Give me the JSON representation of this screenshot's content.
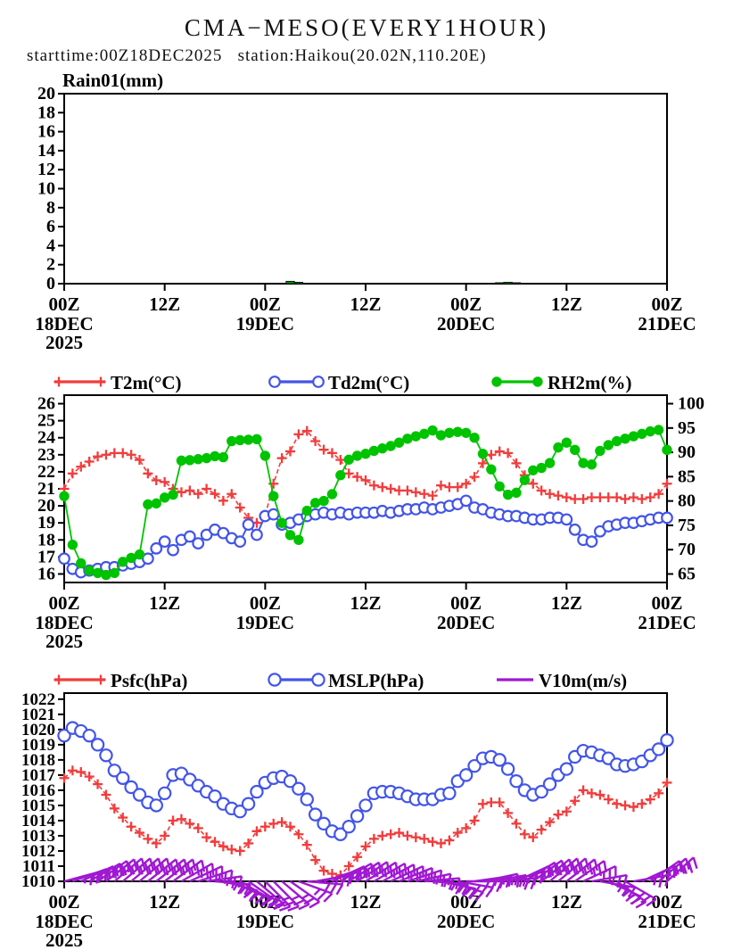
{
  "header": {
    "title": "CMA−MESO(EVERY1HOUR)",
    "subtitle": "starttime:00Z18DEC2025   station:Haikou(20.02N,110.20E)"
  },
  "colors": {
    "t2m": "#f23c3c",
    "td2m": "#4355e8",
    "rh2m": "#00c300",
    "psfc": "#f23c3c",
    "mslp": "#4355e8",
    "v10m": "#a018d2",
    "axis": "#000000",
    "background": "#ffffff",
    "rain_bar": "#009a00"
  },
  "x_axis": {
    "hours_total": 72,
    "ticks": [
      {
        "h": 0,
        "label": "00Z",
        "date": "18DEC",
        "year": "2025"
      },
      {
        "h": 12,
        "label": "12Z"
      },
      {
        "h": 24,
        "label": "00Z",
        "date": "19DEC"
      },
      {
        "h": 36,
        "label": "12Z"
      },
      {
        "h": 48,
        "label": "00Z",
        "date": "20DEC"
      },
      {
        "h": 60,
        "label": "12Z"
      },
      {
        "h": 72,
        "label": "00Z",
        "date": "21DEC"
      }
    ]
  },
  "chart_data": [
    {
      "type": "bar",
      "title": "Rain01(mm)",
      "ylabel": "Rain01(mm)",
      "ylim": [
        0,
        20
      ],
      "yticks": [
        0,
        2,
        4,
        6,
        8,
        10,
        12,
        14,
        16,
        18,
        20
      ],
      "x_hours": "hourly 0-72 from 00Z18DEC2025",
      "values": [
        0,
        0,
        0,
        0,
        0,
        0,
        0,
        0,
        0,
        0,
        0,
        0,
        0,
        0,
        0,
        0,
        0,
        0,
        0,
        0,
        0,
        0,
        0,
        0,
        0,
        0,
        0,
        0.25,
        0.15,
        0,
        0,
        0,
        0,
        0,
        0,
        0,
        0,
        0,
        0,
        0,
        0,
        0,
        0,
        0,
        0,
        0,
        0,
        0,
        0,
        0,
        0,
        0,
        0.1,
        0.15,
        0.1,
        0,
        0,
        0,
        0,
        0,
        0,
        0,
        0,
        0,
        0,
        0,
        0,
        0,
        0,
        0,
        0,
        0,
        0
      ]
    },
    {
      "type": "line",
      "legend_position": "top",
      "ylim_left": [
        15.5,
        26.5
      ],
      "yticks_left": [
        16,
        17,
        18,
        19,
        20,
        21,
        22,
        23,
        24,
        25,
        26
      ],
      "ylim_right": [
        63.25,
        101.75
      ],
      "yticks_right": [
        65,
        70,
        75,
        80,
        85,
        90,
        95,
        100
      ],
      "series": [
        {
          "name": "T2m(°C)",
          "axis": "left",
          "marker": "plus",
          "line": "dashed",
          "values": [
            21.0,
            21.9,
            22.3,
            22.6,
            22.9,
            23.0,
            23.1,
            23.1,
            23.0,
            22.7,
            21.9,
            21.5,
            21.4,
            21.0,
            20.8,
            20.9,
            20.7,
            21.0,
            20.7,
            20.3,
            20.7,
            19.9,
            19.3,
            19.0,
            19.4,
            21.3,
            22.8,
            23.2,
            24.2,
            24.4,
            23.8,
            23.3,
            23.1,
            22.7,
            21.9,
            21.7,
            21.5,
            21.2,
            21.1,
            21.0,
            20.9,
            20.9,
            20.8,
            20.7,
            20.6,
            21.2,
            21.1,
            21.1,
            21.3,
            21.7,
            22.5,
            23.0,
            23.2,
            23.1,
            22.5,
            21.8,
            21.3,
            20.9,
            20.7,
            20.6,
            20.5,
            20.4,
            20.4,
            20.5,
            20.5,
            20.5,
            20.5,
            20.4,
            20.5,
            20.4,
            20.5,
            20.7,
            21.3
          ]
        },
        {
          "name": "Td2m(°C)",
          "axis": "left",
          "marker": "circle",
          "line": "solid",
          "values": [
            16.9,
            16.3,
            16.1,
            16.2,
            16.3,
            16.4,
            16.4,
            16.5,
            16.6,
            16.7,
            16.9,
            17.5,
            17.9,
            17.4,
            18.0,
            18.2,
            17.8,
            18.3,
            18.6,
            18.4,
            18.1,
            17.9,
            18.9,
            18.3,
            19.4,
            19.5,
            18.9,
            19.0,
            19.2,
            19.4,
            19.5,
            19.6,
            19.5,
            19.6,
            19.5,
            19.6,
            19.6,
            19.6,
            19.7,
            19.6,
            19.7,
            19.8,
            19.8,
            19.9,
            19.8,
            19.9,
            20.0,
            20.1,
            20.3,
            19.9,
            19.8,
            19.6,
            19.5,
            19.4,
            19.4,
            19.3,
            19.2,
            19.2,
            19.3,
            19.3,
            19.2,
            18.6,
            18.0,
            17.9,
            18.5,
            18.8,
            18.9,
            19.0,
            19.0,
            19.1,
            19.2,
            19.3,
            19.3
          ]
        },
        {
          "name": "RH2m(%)",
          "axis": "right",
          "marker": "dot",
          "line": "solid",
          "values": [
            81,
            71,
            67.2,
            65.7,
            65.2,
            64.8,
            65.2,
            67.5,
            68.3,
            69,
            79.3,
            79.5,
            80.7,
            81.3,
            88.3,
            88.4,
            88.6,
            88.8,
            89.2,
            89,
            92.3,
            92.5,
            92.6,
            92.7,
            89.3,
            81,
            75.5,
            73,
            72,
            78,
            79.6,
            80,
            81.4,
            85.3,
            88.5,
            89.3,
            89.7,
            90.3,
            90.8,
            91.3,
            92,
            92.8,
            93.3,
            93.8,
            94.5,
            93.5,
            94,
            94.2,
            94,
            93,
            89.7,
            86.5,
            83,
            81.3,
            81.7,
            84.3,
            86.3,
            86.8,
            87.8,
            91,
            92,
            90.5,
            87.8,
            87.5,
            90.3,
            91.5,
            92.3,
            92.8,
            93.3,
            93.8,
            94.3,
            94.6,
            90.5
          ]
        }
      ]
    },
    {
      "type": "line",
      "legend_position": "top",
      "ylim_left": [
        1010,
        1022.4
      ],
      "yticks_left": [
        1010,
        1011,
        1012,
        1013,
        1014,
        1015,
        1016,
        1017,
        1018,
        1019,
        1020,
        1021,
        1022
      ],
      "series": [
        {
          "name": "Psfc(hPa)",
          "axis": "left",
          "marker": "plus",
          "line": "dashed",
          "values": [
            1016.8,
            1017.3,
            1017.2,
            1016.9,
            1016.4,
            1015.7,
            1014.8,
            1014.2,
            1013.6,
            1013.2,
            1012.8,
            1012.5,
            1013.0,
            1014.0,
            1014.1,
            1013.8,
            1013.5,
            1012.9,
            1012.6,
            1012.3,
            1012.1,
            1012.0,
            1012.5,
            1013.3,
            1013.6,
            1013.8,
            1013.9,
            1013.6,
            1013.1,
            1012.4,
            1011.4,
            1010.7,
            1010.5,
            1010.4,
            1011.0,
            1011.6,
            1012.3,
            1012.8,
            1013.0,
            1013.1,
            1013.2,
            1013.0,
            1012.9,
            1012.8,
            1012.6,
            1012.5,
            1012.7,
            1013.2,
            1013.5,
            1014.0,
            1015.1,
            1015.2,
            1015.2,
            1014.5,
            1013.8,
            1013.1,
            1012.9,
            1013.4,
            1013.9,
            1014.4,
            1014.6,
            1015.3,
            1016.0,
            1015.8,
            1015.7,
            1015.4,
            1015.1,
            1015.0,
            1014.9,
            1015.1,
            1015.4,
            1015.8,
            1016.5
          ]
        },
        {
          "name": "MSLP(hPa)",
          "axis": "left",
          "marker": "circle",
          "line": "solid",
          "values": [
            1019.6,
            1020.1,
            1019.9,
            1019.6,
            1019.0,
            1018.3,
            1017.3,
            1016.8,
            1016.2,
            1015.7,
            1015.2,
            1015.0,
            1015.8,
            1017.0,
            1017.1,
            1016.7,
            1016.3,
            1015.9,
            1015.6,
            1015.1,
            1014.8,
            1014.6,
            1015.1,
            1015.9,
            1016.5,
            1016.8,
            1016.9,
            1016.6,
            1016.1,
            1015.4,
            1014.4,
            1013.8,
            1013.3,
            1013.1,
            1013.6,
            1014.3,
            1015.0,
            1015.8,
            1015.9,
            1015.9,
            1015.8,
            1015.6,
            1015.4,
            1015.4,
            1015.4,
            1015.7,
            1015.8,
            1016.6,
            1017.0,
            1017.6,
            1018.1,
            1018.2,
            1018.0,
            1017.4,
            1016.6,
            1016.0,
            1015.7,
            1015.9,
            1016.4,
            1017.0,
            1017.4,
            1018.2,
            1018.6,
            1018.5,
            1018.3,
            1018.1,
            1017.7,
            1017.6,
            1017.7,
            1017.9,
            1018.3,
            1018.7,
            1019.3
          ]
        },
        {
          "name": "V10m(m/s)",
          "axis": "left",
          "marker": "barb",
          "line": "none",
          "barb_base_value": 1010,
          "barb_angles_deg": [
            15,
            20,
            25,
            30,
            35,
            38,
            40,
            40,
            40,
            40,
            38,
            38,
            38,
            36,
            30,
            25,
            18,
            8,
            -5,
            -15,
            -25,
            -30,
            -35,
            -40,
            -45,
            -45,
            -40,
            -35,
            -20,
            -5,
            10,
            18,
            25,
            30,
            32,
            33,
            32,
            30,
            28,
            25,
            22,
            18,
            12,
            5,
            -5,
            -12,
            -18,
            -10,
            0,
            8,
            12,
            10,
            5,
            15,
            25,
            32,
            36,
            38,
            40,
            40,
            38,
            35,
            25,
            10,
            -10,
            -25,
            -35,
            -30,
            10,
            25,
            35,
            40,
            42
          ]
        }
      ]
    }
  ]
}
